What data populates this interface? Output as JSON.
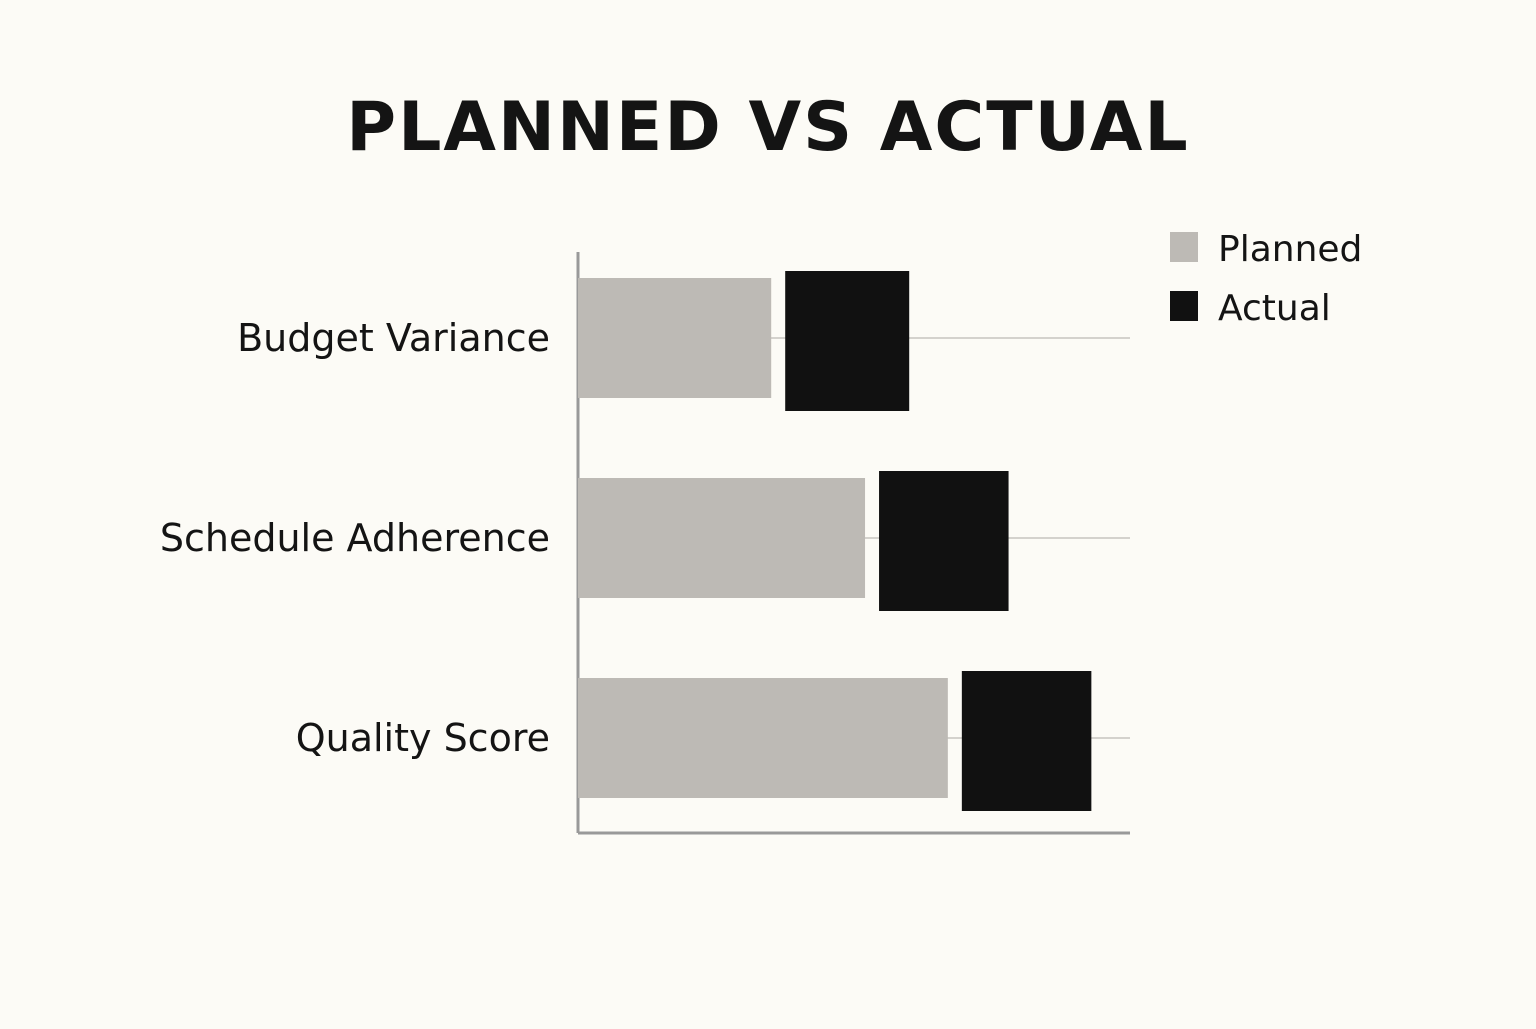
{
  "chart_data": {
    "type": "bar",
    "orientation": "horizontal",
    "title": "PLANNED VS ACTUAL",
    "categories": [
      "Budget Variance",
      "Schedule Adherence",
      "Quality Score"
    ],
    "series": [
      {
        "name": "Planned",
        "values": [
          35,
          52,
          67
        ],
        "color": "#bdbab5"
      },
      {
        "name": "Actual",
        "values": [
          60,
          78,
          93
        ],
        "color": "#111111"
      }
    ],
    "xlim": [
      0,
      100
    ],
    "grid": true,
    "legend_position": "top-right",
    "axis_color": "#999999",
    "grid_color": "#d4d2cd",
    "text_color": "#141414"
  }
}
